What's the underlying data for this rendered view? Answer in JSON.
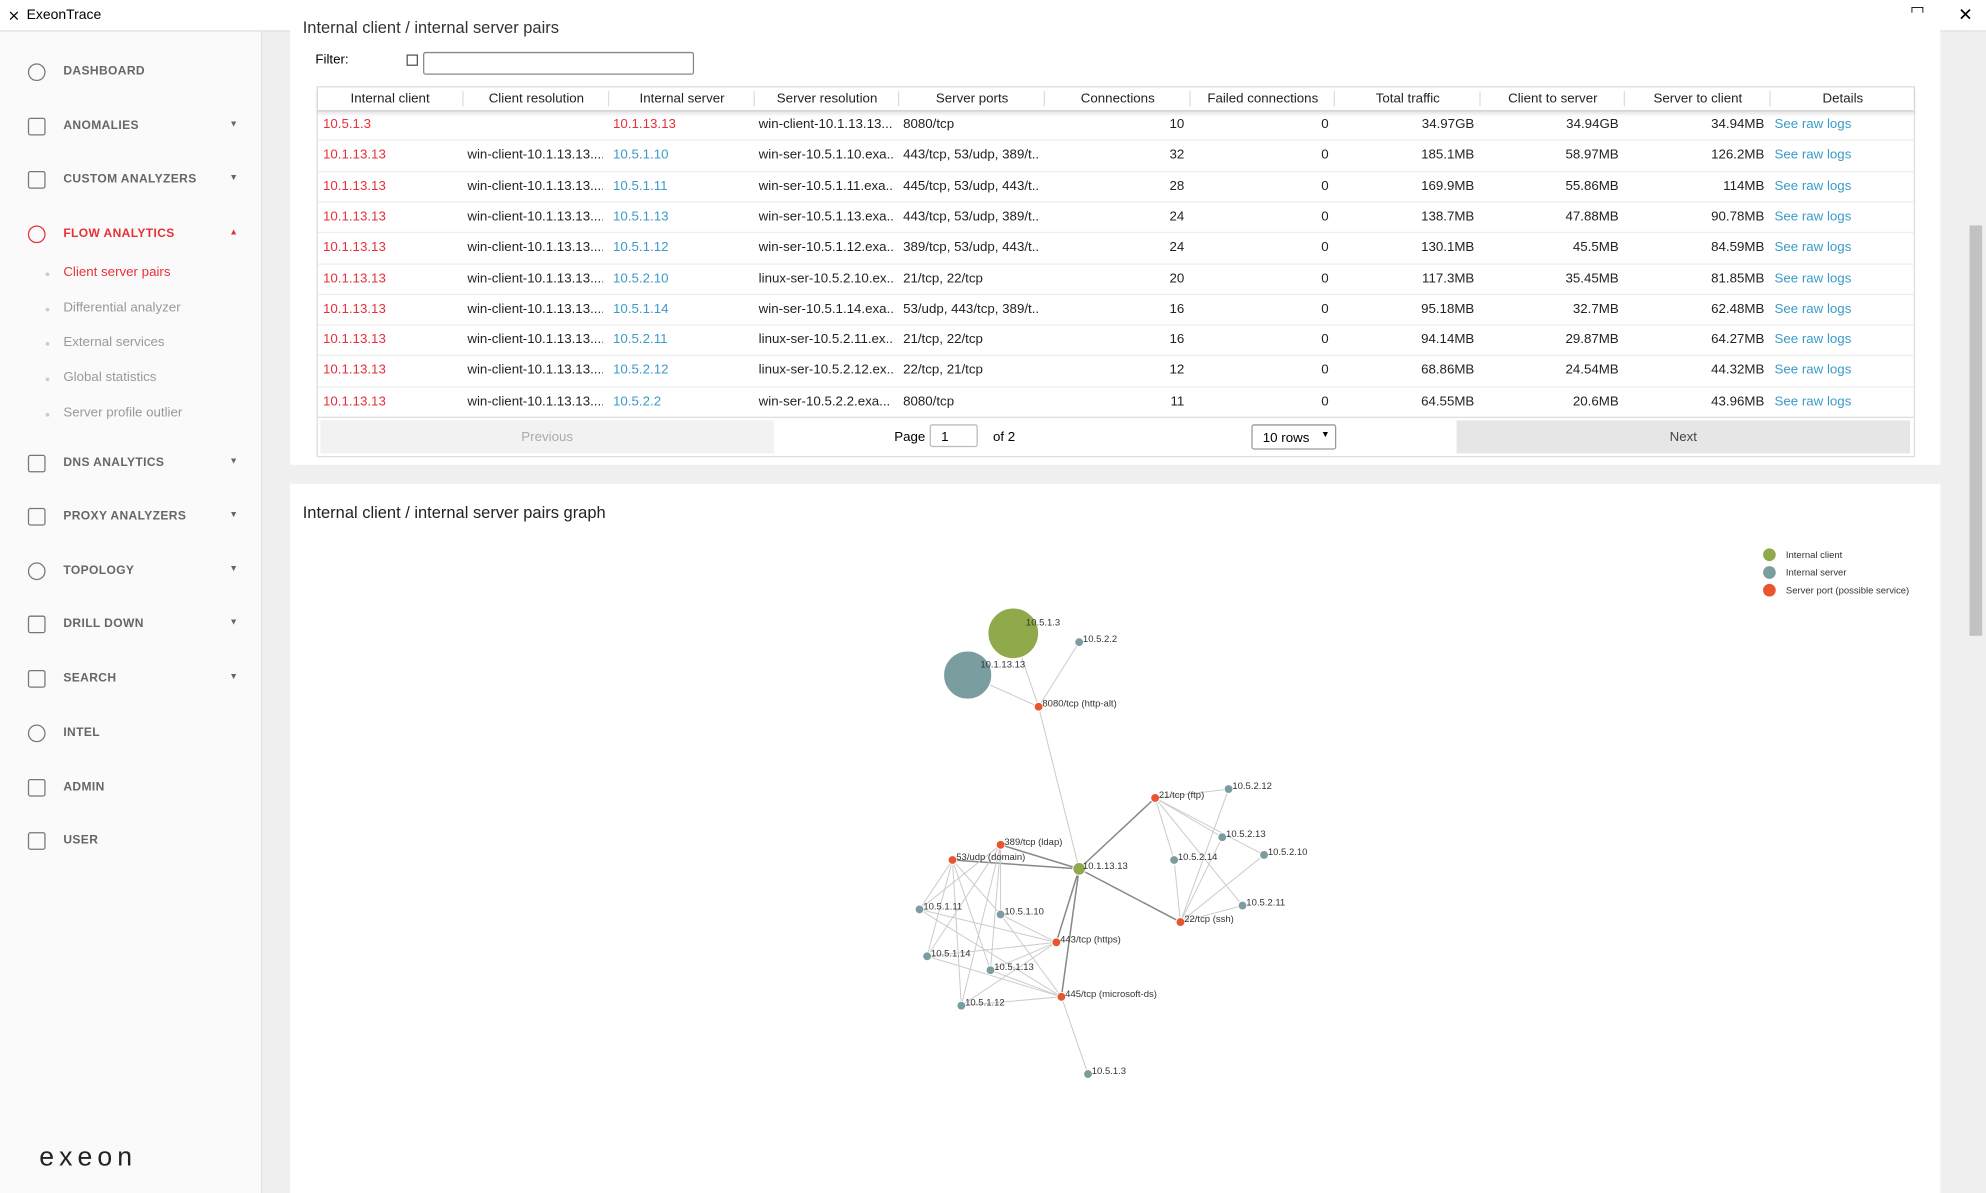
{
  "window": {
    "title": "ExeonTrace"
  },
  "sidebar": {
    "items": [
      "DASHBOARD",
      "ANOMALIES",
      "CUSTOM ANALYZERS",
      "FLOW ANALYTICS",
      "DNS ANALYTICS",
      "PROXY ANALYZERS",
      "TOPOLOGY",
      "DRILL DOWN",
      "SEARCH",
      "INTEL",
      "ADMIN",
      "USER"
    ],
    "subitems": [
      "Client server pairs",
      "Differential analyzer",
      "External services",
      "Global statistics",
      "Server profile outlier"
    ],
    "logo": "exeon"
  },
  "table_card": {
    "title": "Internal client / internal server pairs",
    "filter_label": "Filter:",
    "table": {
      "header": [
        "Internal client",
        "Client resolution",
        "Internal server",
        "Server resolution",
        "Server ports",
        "Connections",
        "Failed connections",
        "Total traffic",
        "Client to server",
        "Server to client",
        "Details"
      ],
      "rows": [
        [
          "10.5.1.3",
          "",
          "10.1.13.13",
          "win-client-10.1.13.13....",
          "8080/tcp",
          "10",
          "0",
          "34.97GB",
          "34.94GB",
          "34.94MB",
          "See raw logs"
        ],
        [
          "10.1.13.13",
          "win-client-10.1.13.13....",
          "10.5.1.10",
          "win-ser-10.5.1.10.exa...",
          "443/tcp, 53/udp, 389/t...",
          "32",
          "0",
          "185.1MB",
          "58.97MB",
          "126.2MB",
          "See raw logs"
        ],
        [
          "10.1.13.13",
          "win-client-10.1.13.13....",
          "10.5.1.11",
          "win-ser-10.5.1.11.exa...",
          "445/tcp, 53/udp, 443/t...",
          "28",
          "0",
          "169.9MB",
          "55.86MB",
          "114MB",
          "See raw logs"
        ],
        [
          "10.1.13.13",
          "win-client-10.1.13.13....",
          "10.5.1.13",
          "win-ser-10.5.1.13.exa...",
          "443/tcp, 53/udp, 389/t...",
          "24",
          "0",
          "138.7MB",
          "47.88MB",
          "90.78MB",
          "See raw logs"
        ],
        [
          "10.1.13.13",
          "win-client-10.1.13.13....",
          "10.5.1.12",
          "win-ser-10.5.1.12.exa...",
          "389/tcp, 53/udp, 443/t...",
          "24",
          "0",
          "130.1MB",
          "45.5MB",
          "84.59MB",
          "See raw logs"
        ],
        [
          "10.1.13.13",
          "win-client-10.1.13.13....",
          "10.5.2.10",
          "linux-ser-10.5.2.10.ex...",
          "21/tcp, 22/tcp",
          "20",
          "0",
          "117.3MB",
          "35.45MB",
          "81.85MB",
          "See raw logs"
        ],
        [
          "10.1.13.13",
          "win-client-10.1.13.13....",
          "10.5.1.14",
          "win-ser-10.5.1.14.exa...",
          "53/udp, 443/tcp, 389/t...",
          "16",
          "0",
          "95.18MB",
          "32.7MB",
          "62.48MB",
          "See raw logs"
        ],
        [
          "10.1.13.13",
          "win-client-10.1.13.13....",
          "10.5.2.11",
          "linux-ser-10.5.2.11.ex...",
          "21/tcp, 22/tcp",
          "16",
          "0",
          "94.14MB",
          "29.87MB",
          "64.27MB",
          "See raw logs"
        ],
        [
          "10.1.13.13",
          "win-client-10.1.13.13....",
          "10.5.2.12",
          "linux-ser-10.5.2.12.ex...",
          "22/tcp, 21/tcp",
          "12",
          "0",
          "68.86MB",
          "24.54MB",
          "44.32MB",
          "See raw logs"
        ],
        [
          "10.1.13.13",
          "win-client-10.1.13.13....",
          "10.5.2.2",
          "win-ser-10.5.2.2.exa...",
          "8080/tcp",
          "11",
          "0",
          "64.55MB",
          "20.6MB",
          "43.96MB",
          "See raw logs"
        ]
      ]
    },
    "pagination": {
      "previous": "Previous",
      "page_label": "Page",
      "page": "1",
      "of": "of 2",
      "rows": "10 rows",
      "next": "Next"
    }
  },
  "graph_card": {
    "title": "Internal client / internal server pairs graph",
    "legend": [
      "Internal client",
      "Internal server",
      "Server port (possible service)"
    ],
    "nodes": [
      "10.5.1.3",
      "10.1.13.13",
      "10.5.2.2",
      "8080/tcp (http-alt)",
      "21/tcp (ftp)",
      "10.5.2.12",
      "10.5.2.13",
      "10.5.2.10",
      "10.5.2.14",
      "10.5.2.11",
      "22/tcp (ssh)",
      "389/tcp (ldap)",
      "53/udp (domain)",
      "10.1.13.13",
      "10.5.1.11",
      "10.5.1.10",
      "443/tcp (https)",
      "10.5.1.14",
      "10.5.1.13",
      "445/tcp (microsoft-ds)",
      "10.5.1.12",
      "10.5.1.3"
    ]
  }
}
